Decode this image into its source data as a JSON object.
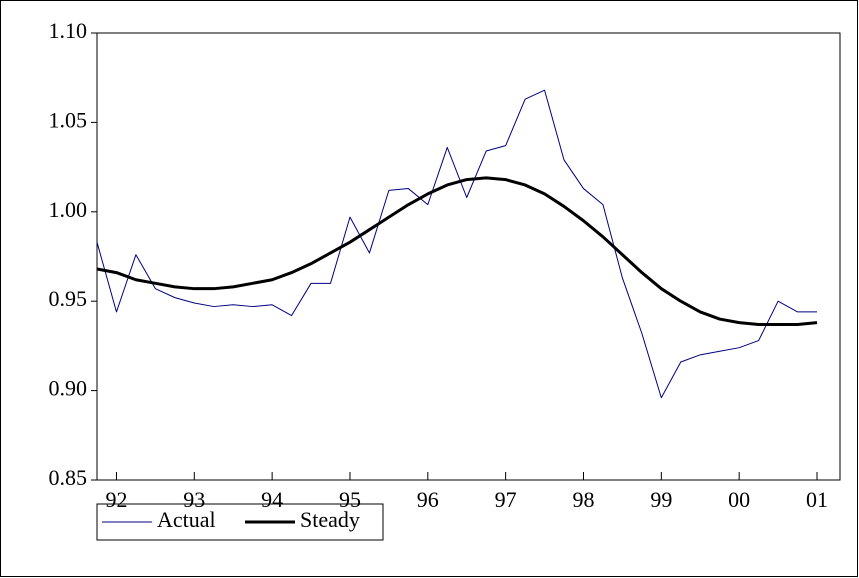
{
  "chart_data": {
    "type": "line",
    "categories": [
      null,
      "92",
      null,
      null,
      null,
      "93",
      null,
      null,
      null,
      "94",
      null,
      null,
      null,
      "95",
      null,
      null,
      null,
      "96",
      null,
      null,
      null,
      "97",
      null,
      null,
      null,
      "98",
      null,
      null,
      null,
      "99",
      null,
      null,
      null,
      "00",
      null,
      null,
      null,
      "01"
    ],
    "series": [
      {
        "name": "Actual",
        "color": "#000080",
        "values": [
          0.983,
          0.944,
          0.976,
          0.957,
          0.952,
          0.949,
          0.947,
          0.948,
          0.947,
          0.948,
          0.942,
          0.96,
          0.96,
          0.997,
          0.977,
          1.012,
          1.013,
          1.004,
          1.036,
          1.008,
          1.034,
          1.037,
          1.063,
          1.068,
          1.029,
          1.013,
          1.004,
          0.963,
          0.932,
          0.896,
          0.916,
          0.92,
          0.922,
          0.924,
          0.928,
          0.95,
          0.944,
          0.944
        ]
      },
      {
        "name": "Steady",
        "color": "#000000",
        "values": [
          0.968,
          0.966,
          0.962,
          0.96,
          0.958,
          0.957,
          0.957,
          0.958,
          0.96,
          0.962,
          0.966,
          0.971,
          0.977,
          0.983,
          0.99,
          0.997,
          1.004,
          1.01,
          1.015,
          1.018,
          1.019,
          1.018,
          1.015,
          1.01,
          1.003,
          0.995,
          0.986,
          0.976,
          0.966,
          0.957,
          0.95,
          0.944,
          0.94,
          0.938,
          0.937,
          0.937,
          0.937,
          0.938
        ]
      }
    ],
    "ylim": [
      0.85,
      1.1
    ],
    "yticks": [
      0.85,
      {
        "value": 0.9,
        "label": "0.90"
      },
      0.95,
      {
        "value": 1.0,
        "label": "1.00"
      },
      1.05,
      {
        "value": 1.1,
        "label": "1.10"
      }
    ],
    "grid": false
  }
}
